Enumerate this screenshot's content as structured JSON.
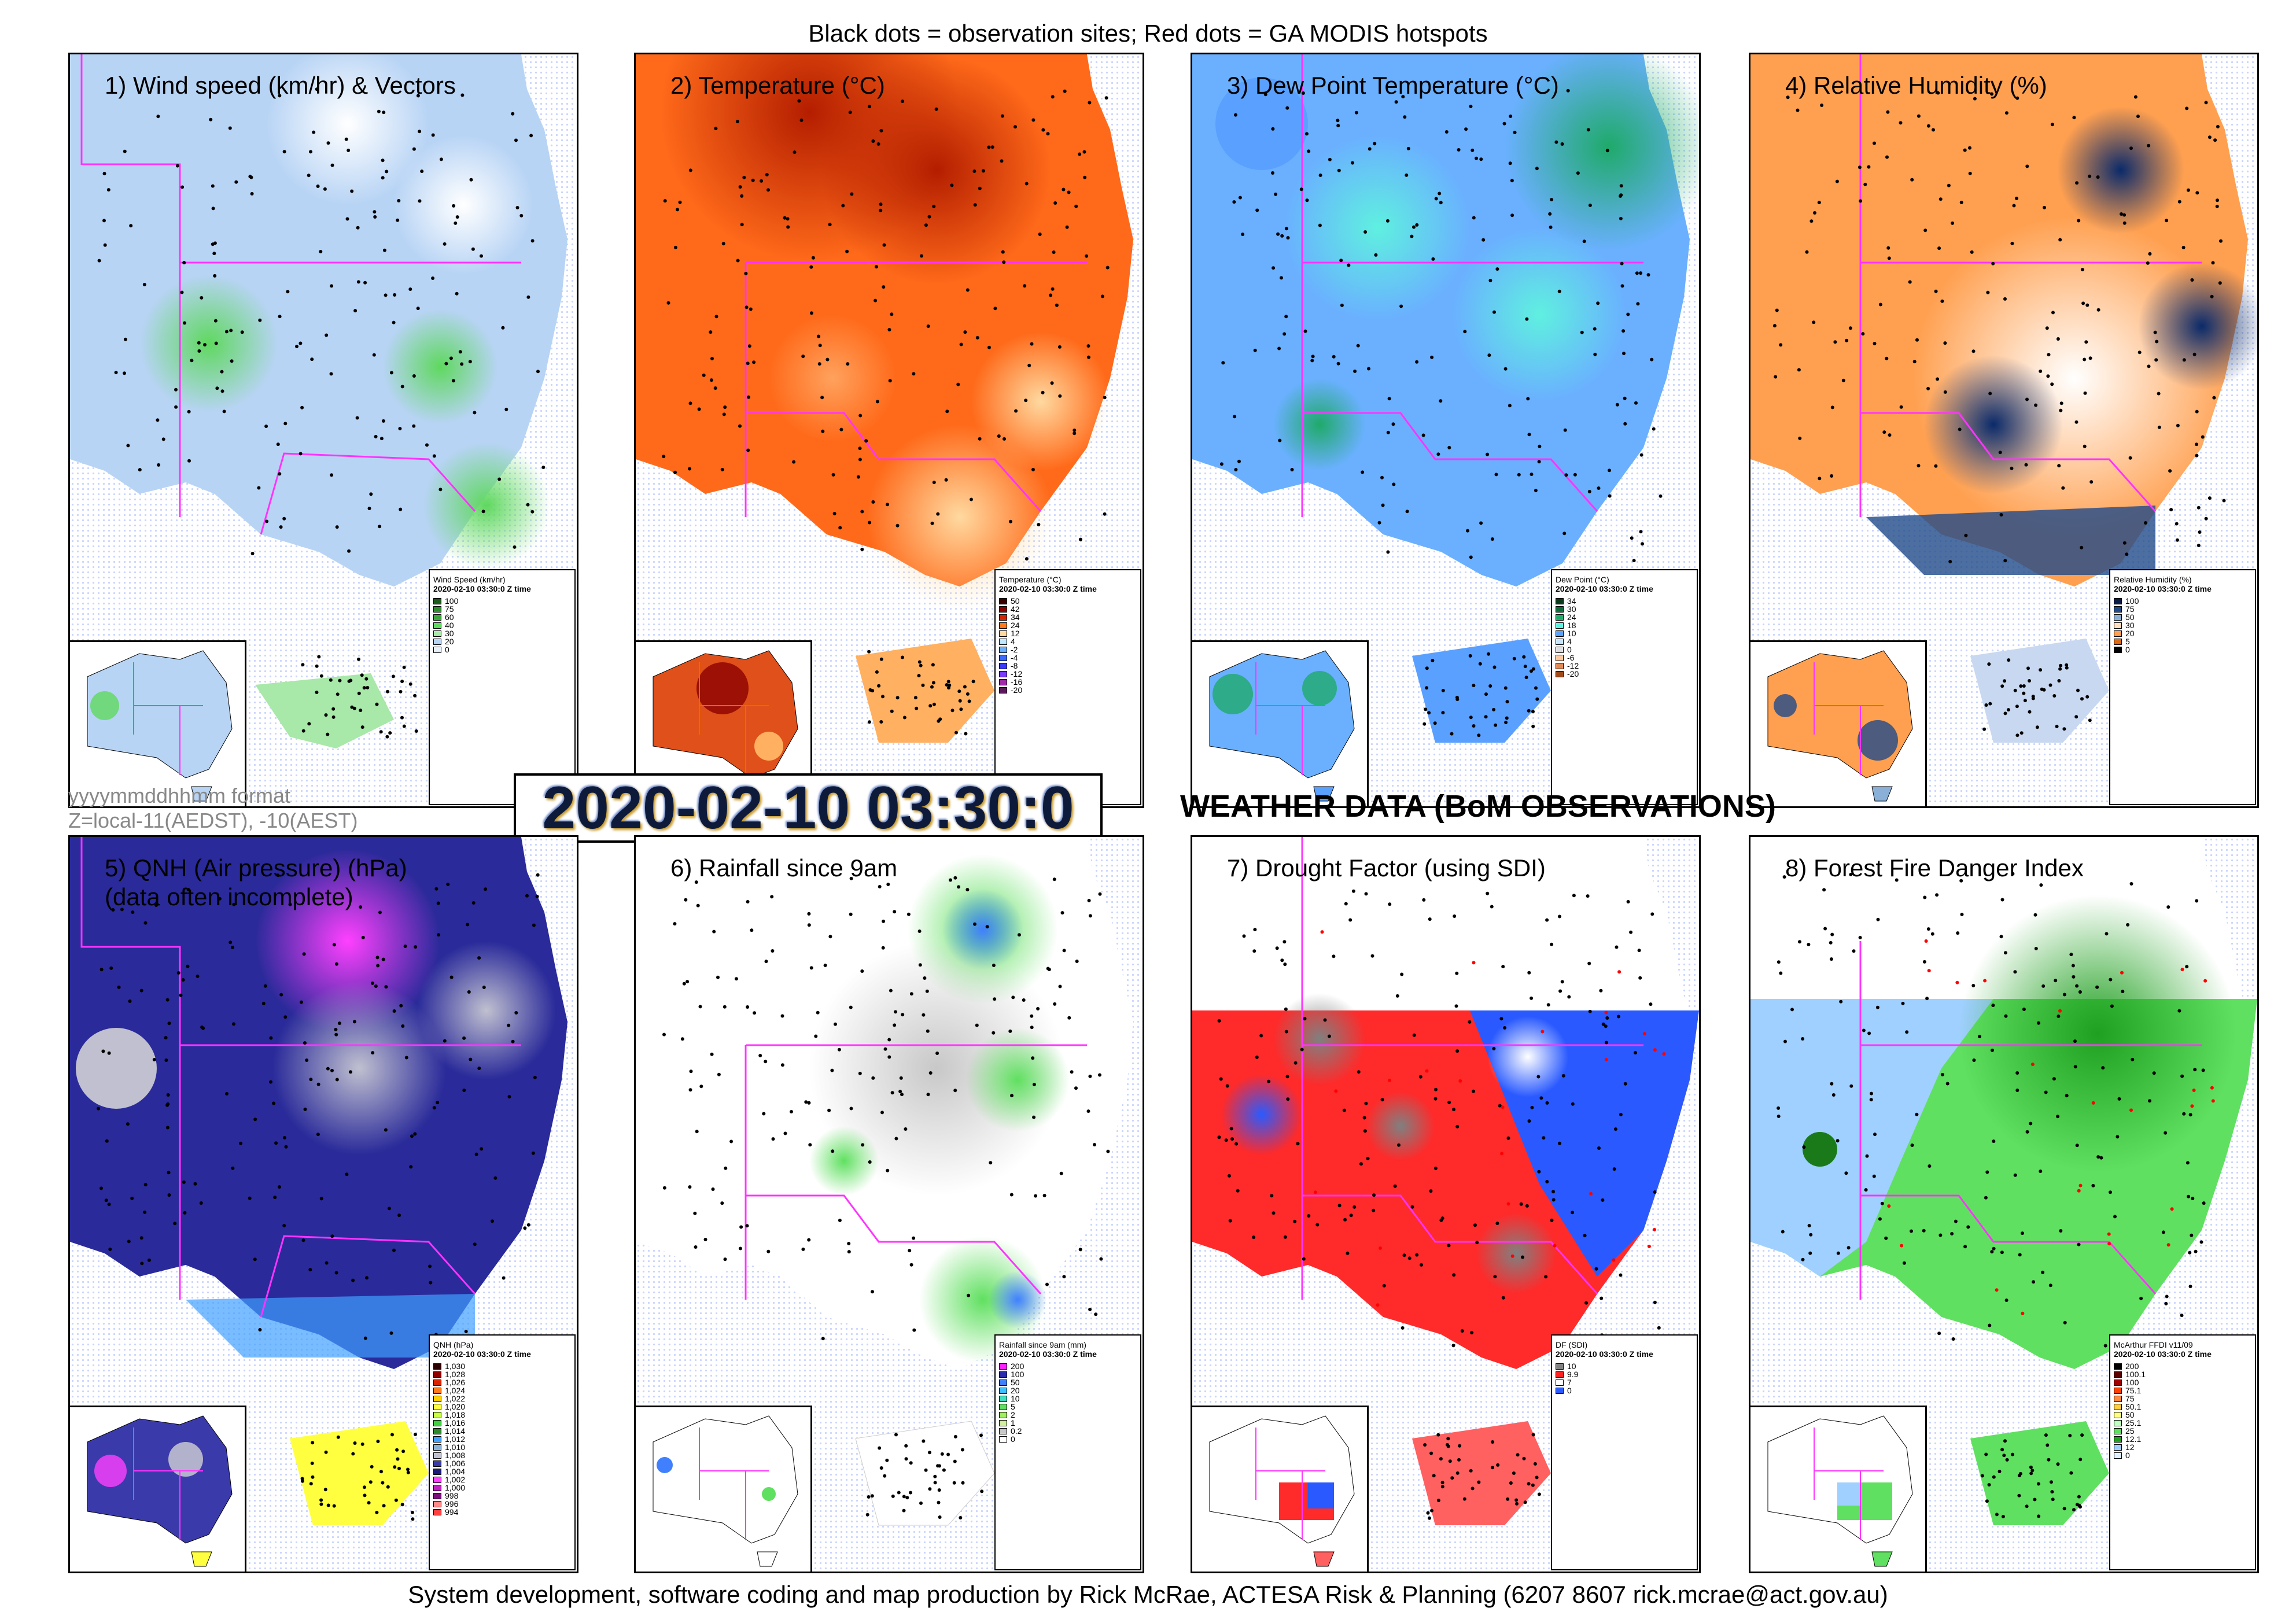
{
  "header": "Black dots = observation sites; Red dots = GA MODIS hotspots",
  "footer": "System development, software coding and map production by Rick McRae, ACTESA Risk & Planning (6207 8607 rick.mcrae@act.gov.au)",
  "date_stamp": "2020-02-10 03:30:0",
  "format_note_1": "yyyymmddhhmm format",
  "format_note_2": "Z=local-11(AEDST), -10(AEST)",
  "section_title": "WEATHER DATA (BoM OBSERVATIONS)",
  "colors": {
    "border": "#ff33ff",
    "sites": "#000000",
    "hotspots": "#ff0000"
  },
  "panels": [
    {
      "title": "1) Wind speed (km/hr) & Vectors",
      "title2": "",
      "legend_title": "Wind Speed (km/hr)",
      "legend_time": "2020-02-10 03:30:0 Z time",
      "legend": [
        {
          "label": "100",
          "color": "#1a5a1a"
        },
        {
          "label": "75",
          "color": "#2e8b2e"
        },
        {
          "label": "60",
          "color": "#3aa53a"
        },
        {
          "label": "40",
          "color": "#5fd85f"
        },
        {
          "label": "30",
          "color": "#a8e8a8"
        },
        {
          "label": "20",
          "color": "#b8d4f5"
        },
        {
          "label": "0",
          "color": "#e8f0fb"
        }
      ]
    },
    {
      "title": "2) Temperature (°C)",
      "title2": "",
      "legend_title": "Temperature (°C)",
      "legend_time": "2020-02-10 03:30:0 Z time",
      "legend": [
        {
          "label": "50",
          "color": "#3a0000"
        },
        {
          "label": "42",
          "color": "#8b0000"
        },
        {
          "label": "34",
          "color": "#d62400"
        },
        {
          "label": "24",
          "color": "#ff7a1a"
        },
        {
          "label": "12",
          "color": "#ffd9a0"
        },
        {
          "label": "4",
          "color": "#c0e8ff"
        },
        {
          "label": "-2",
          "color": "#6ab0ff"
        },
        {
          "label": "-4",
          "color": "#3a6aff"
        },
        {
          "label": "-8",
          "color": "#3a3aff"
        },
        {
          "label": "-12",
          "color": "#7a3aff"
        },
        {
          "label": "-16",
          "color": "#a02aaa"
        },
        {
          "label": "-20",
          "color": "#5a1a5a"
        }
      ]
    },
    {
      "title": "3) Dew Point Temperature (°C)",
      "title2": "",
      "legend_title": "Dew Point (°C)",
      "legend_time": "2020-02-10 03:30:0 Z time",
      "legend": [
        {
          "label": "34",
          "color": "#0a3a1a"
        },
        {
          "label": "30",
          "color": "#0f6a3a"
        },
        {
          "label": "24",
          "color": "#1faa6a"
        },
        {
          "label": "18",
          "color": "#5ff0e0"
        },
        {
          "label": "10",
          "color": "#5aa0ff"
        },
        {
          "label": "4",
          "color": "#c8e4ff"
        },
        {
          "label": "0",
          "color": "#e0e0e0"
        },
        {
          "label": "-6",
          "color": "#ffc8a0"
        },
        {
          "label": "-12",
          "color": "#e08a5a"
        },
        {
          "label": "-20",
          "color": "#a04a1a"
        }
      ]
    },
    {
      "title": "4) Relative Humidity (%)",
      "title2": "",
      "legend_title": "Relative Humidity (%)",
      "legend_time": "2020-02-10 03:30:0 Z time",
      "legend": [
        {
          "label": "100",
          "color": "#0a1a4a"
        },
        {
          "label": "75",
          "color": "#1f4a8a"
        },
        {
          "label": "50",
          "color": "#8ab0d8"
        },
        {
          "label": "30",
          "color": "#ffe0c0"
        },
        {
          "label": "20",
          "color": "#ffa050"
        },
        {
          "label": "5",
          "color": "#e06a10"
        },
        {
          "label": "0",
          "color": "#000000"
        }
      ]
    },
    {
      "title": "5) QNH (Air pressure) (hPa)",
      "title2": "(data often incomplete)",
      "legend_title": "QNH (hPa)",
      "legend_time": "2020-02-10 03:30:0 Z time",
      "legend": [
        {
          "label": "1,030",
          "color": "#2a0000"
        },
        {
          "label": "1,028",
          "color": "#8b0000"
        },
        {
          "label": "1,026",
          "color": "#d62400"
        },
        {
          "label": "1,024",
          "color": "#ff7a1a"
        },
        {
          "label": "1,022",
          "color": "#ffd000"
        },
        {
          "label": "1,020",
          "color": "#ffff40"
        },
        {
          "label": "1,018",
          "color": "#c8ff40"
        },
        {
          "label": "1,016",
          "color": "#40d040"
        },
        {
          "label": "1,014",
          "color": "#2a8a2a"
        },
        {
          "label": "1,012",
          "color": "#40a0ff"
        },
        {
          "label": "1,010",
          "color": "#8ab0d8"
        },
        {
          "label": "1,008",
          "color": "#c0c0d0"
        },
        {
          "label": "1,006",
          "color": "#3a3aaa"
        },
        {
          "label": "1,004",
          "color": "#1a1a7a"
        },
        {
          "label": "1,002",
          "color": "#ff40ff"
        },
        {
          "label": "1,000",
          "color": "#c020c0"
        },
        {
          "label": "998",
          "color": "#7a107a"
        },
        {
          "label": "996",
          "color": "#ff8a8a"
        },
        {
          "label": "994",
          "color": "#ff4040"
        }
      ]
    },
    {
      "title": "6) Rainfall since 9am",
      "title2": "",
      "legend_title": "Rainfall since 9am (mm)",
      "legend_time": "2020-02-10 03:30:0 Z time",
      "legend": [
        {
          "label": "200",
          "color": "#ff20ff"
        },
        {
          "label": "100",
          "color": "#2a2aaa"
        },
        {
          "label": "50",
          "color": "#4080ff"
        },
        {
          "label": "20",
          "color": "#40c0ff"
        },
        {
          "label": "10",
          "color": "#40e0c0"
        },
        {
          "label": "5",
          "color": "#60e060"
        },
        {
          "label": "2",
          "color": "#a0f060"
        },
        {
          "label": "1",
          "color": "#d0f0a0"
        },
        {
          "label": "0.2",
          "color": "#c8c8c8"
        },
        {
          "label": "0",
          "color": "#ffffff"
        }
      ]
    },
    {
      "title": "7) Drought Factor (using SDI)",
      "title2": "",
      "legend_title": "DF (SDI)",
      "legend_time": "2020-02-10 03:30:0 Z time",
      "legend": [
        {
          "label": "10",
          "color": "#808080"
        },
        {
          "label": "9.9",
          "color": "#ff2020"
        },
        {
          "label": "7",
          "color": "#ffffff"
        },
        {
          "label": "0",
          "color": "#2a5aff"
        }
      ]
    },
    {
      "title": "8) Forest Fire Danger Index",
      "title2": "",
      "legend_title": "McArthur FFDI v11/09",
      "legend_time": "2020-02-10 03:30:0 Z time",
      "legend": [
        {
          "label": "200",
          "color": "#000000"
        },
        {
          "label": "100.1",
          "color": "#5a0000"
        },
        {
          "label": "100",
          "color": "#a00000"
        },
        {
          "label": "75.1",
          "color": "#ff4000"
        },
        {
          "label": "75",
          "color": "#ff8a40"
        },
        {
          "label": "50.1",
          "color": "#ffd040"
        },
        {
          "label": "50",
          "color": "#ffff80"
        },
        {
          "label": "25.1",
          "color": "#c0ffc0"
        },
        {
          "label": "25",
          "color": "#60e060"
        },
        {
          "label": "12.1",
          "color": "#20a020"
        },
        {
          "label": "12",
          "color": "#a0d0ff"
        },
        {
          "label": "0",
          "color": "#e0f0ff"
        }
      ]
    }
  ]
}
